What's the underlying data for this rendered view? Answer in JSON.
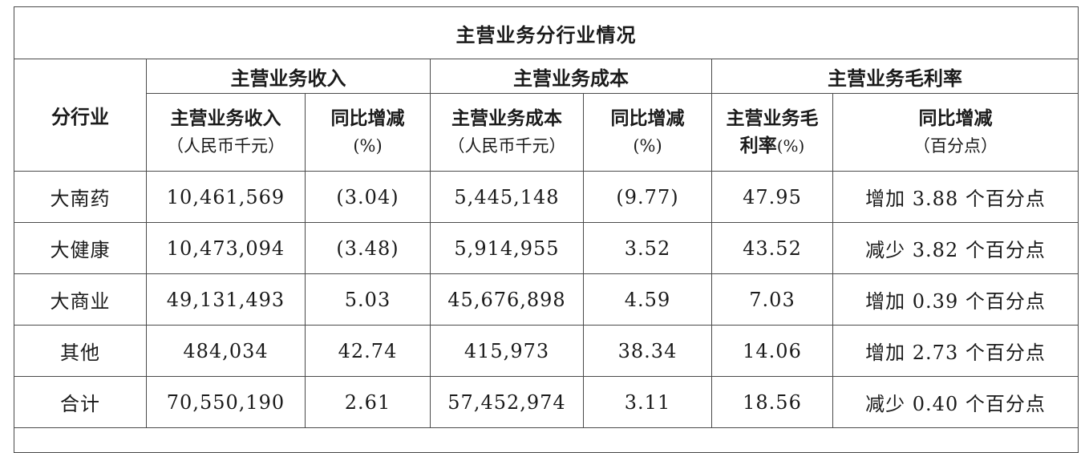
{
  "table": {
    "title": "主营业务分行业情况",
    "segment_header": "分行业",
    "groups": {
      "revenue": "主营业务收入",
      "cost": "主营业务成本",
      "margin": "主营业务毛利率"
    },
    "subheaders": {
      "revenue_main": "主营业务收入",
      "revenue_unit": "（人民币千元）",
      "revenue_yoy_main": "同比增减",
      "revenue_yoy_unit": "(%)",
      "cost_main": "主营业务成本",
      "cost_unit": "（人民币千元）",
      "cost_yoy_main": "同比增减",
      "cost_yoy_unit": "(%)",
      "margin_main_line1": "主营业务毛",
      "margin_main_line2": "利率",
      "margin_unit": "(%)",
      "margin_yoy_main": "同比增减",
      "margin_yoy_unit": "（百分点）"
    },
    "rows": [
      {
        "segment": "大南药",
        "revenue": "10,461,569",
        "revenue_yoy": "(3.04)",
        "cost": "5,445,148",
        "cost_yoy": "(9.77)",
        "margin": "47.95",
        "margin_yoy": "增加 3.88 个百分点"
      },
      {
        "segment": "大健康",
        "revenue": "10,473,094",
        "revenue_yoy": "(3.48)",
        "cost": "5,914,955",
        "cost_yoy": "3.52",
        "margin": "43.52",
        "margin_yoy": "减少 3.82 个百分点"
      },
      {
        "segment": "大商业",
        "revenue": "49,131,493",
        "revenue_yoy": "5.03",
        "cost": "45,676,898",
        "cost_yoy": "4.59",
        "margin": "7.03",
        "margin_yoy": "增加 0.39 个百分点"
      },
      {
        "segment": "其他",
        "revenue": "484,034",
        "revenue_yoy": "42.74",
        "cost": "415,973",
        "cost_yoy": "38.34",
        "margin": "14.06",
        "margin_yoy": "增加 2.73 个百分点"
      },
      {
        "segment": "合计",
        "revenue": "70,550,190",
        "revenue_yoy": "2.61",
        "cost": "57,452,974",
        "cost_yoy": "3.11",
        "margin": "18.56",
        "margin_yoy": "减少 0.40 个百分点"
      }
    ]
  }
}
